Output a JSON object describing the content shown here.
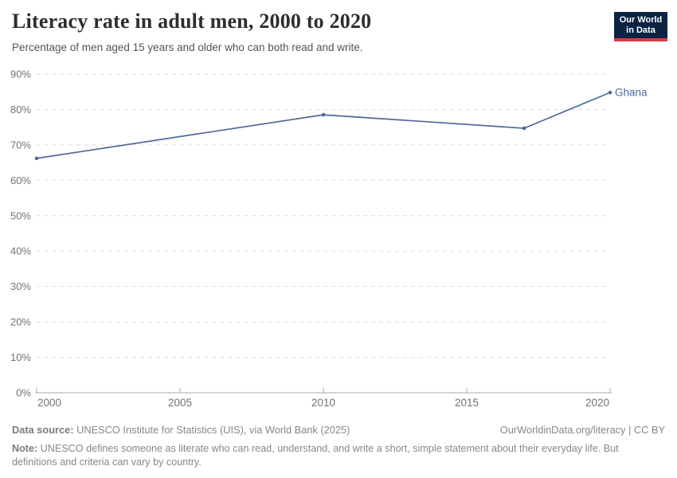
{
  "header": {
    "title": "Literacy rate in adult men, 2000 to 2020",
    "subtitle": "Percentage of men aged 15 years and older who can both read and write.",
    "logo": {
      "line1": "Our World",
      "line2": "in Data"
    }
  },
  "chart_data": {
    "type": "line",
    "title": "Literacy rate in adult men, 2000 to 2020",
    "xlabel": "",
    "ylabel": "",
    "xlim": [
      2000,
      2020
    ],
    "ylim": [
      0,
      90
    ],
    "grid": "horizontal-dashed",
    "legend_position": "end-of-line-label",
    "xticks": [
      {
        "v": 2000,
        "label": "2000"
      },
      {
        "v": 2005,
        "label": "2005"
      },
      {
        "v": 2010,
        "label": "2010"
      },
      {
        "v": 2015,
        "label": "2015"
      },
      {
        "v": 2020,
        "label": "2020"
      }
    ],
    "yticks": [
      {
        "v": 0,
        "label": "0%"
      },
      {
        "v": 10,
        "label": "10%"
      },
      {
        "v": 20,
        "label": "20%"
      },
      {
        "v": 30,
        "label": "30%"
      },
      {
        "v": 40,
        "label": "40%"
      },
      {
        "v": 50,
        "label": "50%"
      },
      {
        "v": 60,
        "label": "60%"
      },
      {
        "v": 70,
        "label": "70%"
      },
      {
        "v": 80,
        "label": "80%"
      },
      {
        "v": 90,
        "label": "90%"
      }
    ],
    "series": [
      {
        "name": "Ghana",
        "color": "#4c6a9c",
        "years": [
          2000,
          2010,
          2017,
          2020
        ],
        "values": [
          66.2,
          78.5,
          74.7,
          84.8
        ]
      }
    ]
  },
  "footer": {
    "datasource_label": "Data source:",
    "datasource_text": " UNESCO Institute for Statistics (UIS), via World Bank (2025)",
    "link_text": "OurWorldinData.org/literacy | CC BY",
    "note_label": "Note:",
    "note_text": " UNESCO defines someone as literate who can read, understand, and write a short, simple statement about their everyday life. But definitions and criteria can vary by country."
  },
  "colors": {
    "accent_line": "#4c6a9c",
    "grid": "#dedede",
    "axis_line": "#a9a9a9",
    "axis_text": "#737373",
    "logo_navy": "#0c2344",
    "logo_red": "#dc3b43"
  }
}
